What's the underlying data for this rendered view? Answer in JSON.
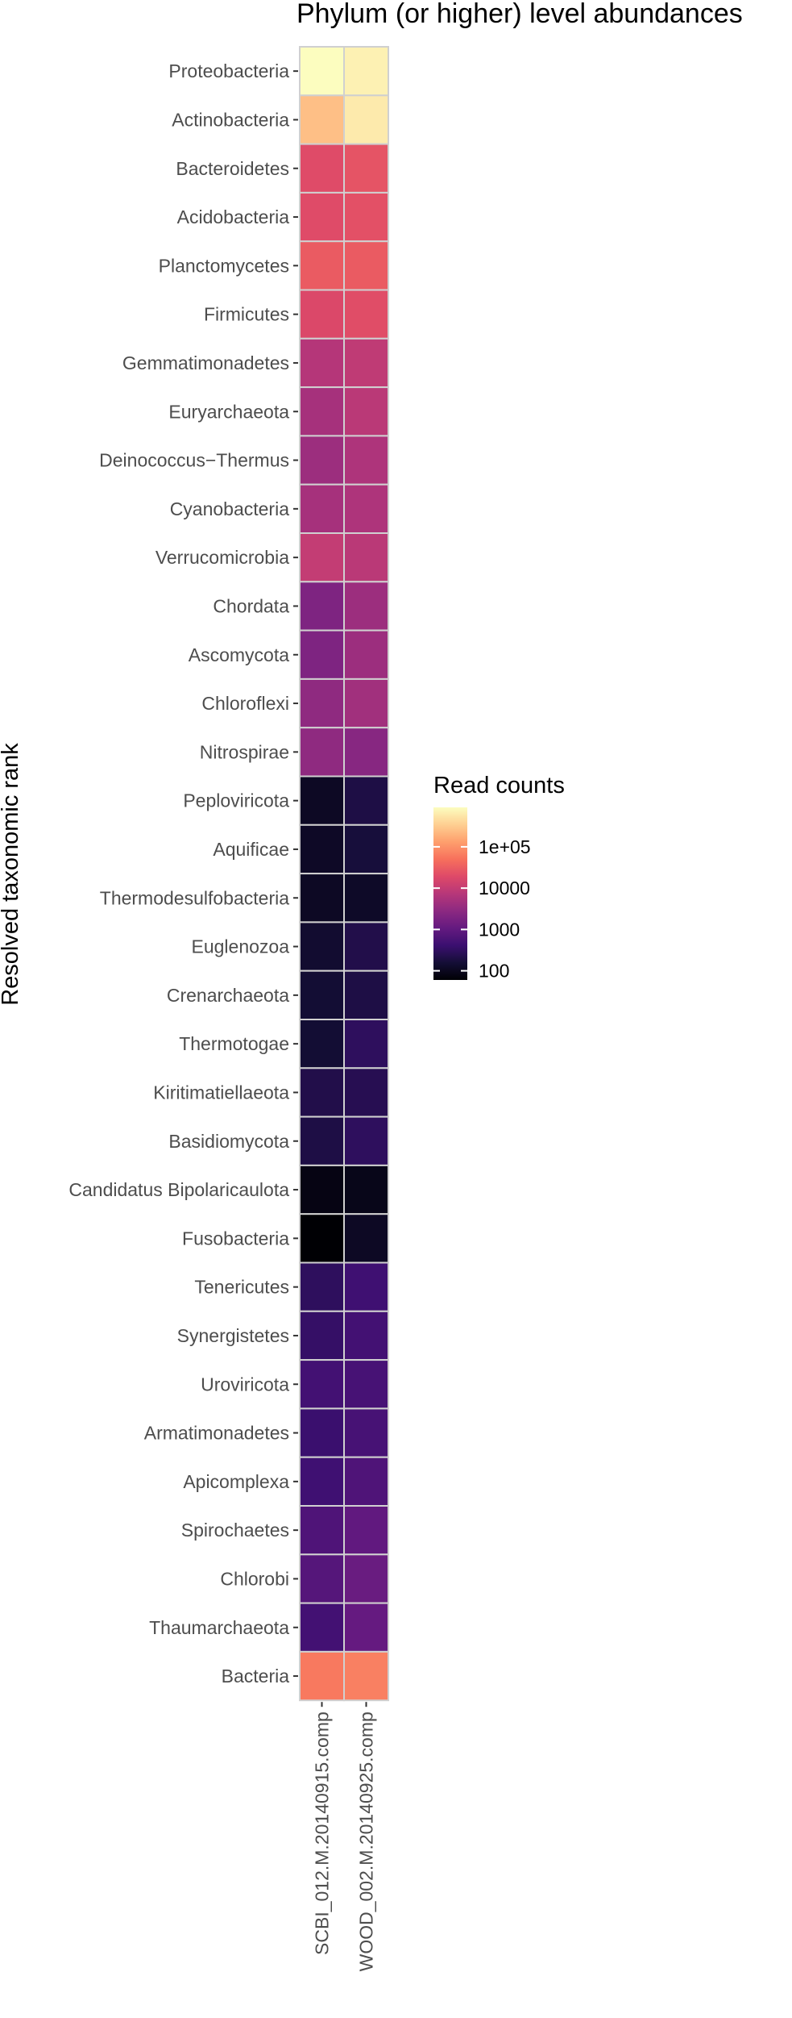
{
  "chart_data": {
    "type": "heatmap",
    "title": "Phylum (or higher) level abundances",
    "xlabel": "",
    "ylabel": "Resolved taxonomic rank",
    "colormap": "magma",
    "scale": "log10",
    "x": [
      "SCBI_012.M.20140915.comp",
      "WOOD_002.M.20140925.comp"
    ],
    "y": [
      "Proteobacteria",
      "Actinobacteria",
      "Bacteroidetes",
      "Acidobacteria",
      "Planctomycetes",
      "Firmicutes",
      "Gemmatimonadetes",
      "Euryarchaeota",
      "Deinococcus−Thermus",
      "Cyanobacteria",
      "Verrucomicrobia",
      "Chordata",
      "Ascomycota",
      "Chloroflexi",
      "Nitrospirae",
      "Peploviricota",
      "Aquificae",
      "Thermodesulfobacteria",
      "Euglenozoa",
      "Crenarchaeota",
      "Thermotogae",
      "Kiritimatiellaeota",
      "Basidiomycota",
      "Candidatus Bipolaricaulota",
      "Fusobacteria",
      "Tenericutes",
      "Synergistetes",
      "Uroviricota",
      "Armatimonadetes",
      "Apicomplexa",
      "Spirochaetes",
      "Chlorobi",
      "Thaumarchaeota",
      "Bacteria"
    ],
    "values": [
      [
        900000,
        700000
      ],
      [
        250000,
        600000
      ],
      [
        20000,
        25000
      ],
      [
        20000,
        23000
      ],
      [
        30000,
        30000
      ],
      [
        18000,
        21000
      ],
      [
        7000,
        9000
      ],
      [
        5000,
        8000
      ],
      [
        4000,
        6000
      ],
      [
        5000,
        6000
      ],
      [
        10000,
        8000
      ],
      [
        2000,
        4000
      ],
      [
        2000,
        4000
      ],
      [
        3000,
        4500
      ],
      [
        3000,
        2500
      ],
      [
        110,
        200
      ],
      [
        115,
        170
      ],
      [
        110,
        120
      ],
      [
        140,
        220
      ],
      [
        150,
        200
      ],
      [
        150,
        300
      ],
      [
        220,
        250
      ],
      [
        200,
        300
      ],
      [
        80,
        90
      ],
      [
        60,
        110
      ],
      [
        300,
        450
      ],
      [
        350,
        500
      ],
      [
        500,
        550
      ],
      [
        400,
        550
      ],
      [
        450,
        650
      ],
      [
        650,
        1000
      ],
      [
        750,
        1200
      ],
      [
        500,
        1100
      ],
      [
        60000,
        70000
      ]
    ],
    "legend": {
      "title": "Read counts",
      "position": "right",
      "ticks": [
        {
          "value": 100,
          "label": "100"
        },
        {
          "value": 1000,
          "label": "1000"
        },
        {
          "value": 10000,
          "label": "10000"
        },
        {
          "value": 100000,
          "label": "1e+05"
        }
      ],
      "min": 60,
      "max": 900000
    },
    "grid": false,
    "cell_border_color": "#d0d0d0"
  }
}
